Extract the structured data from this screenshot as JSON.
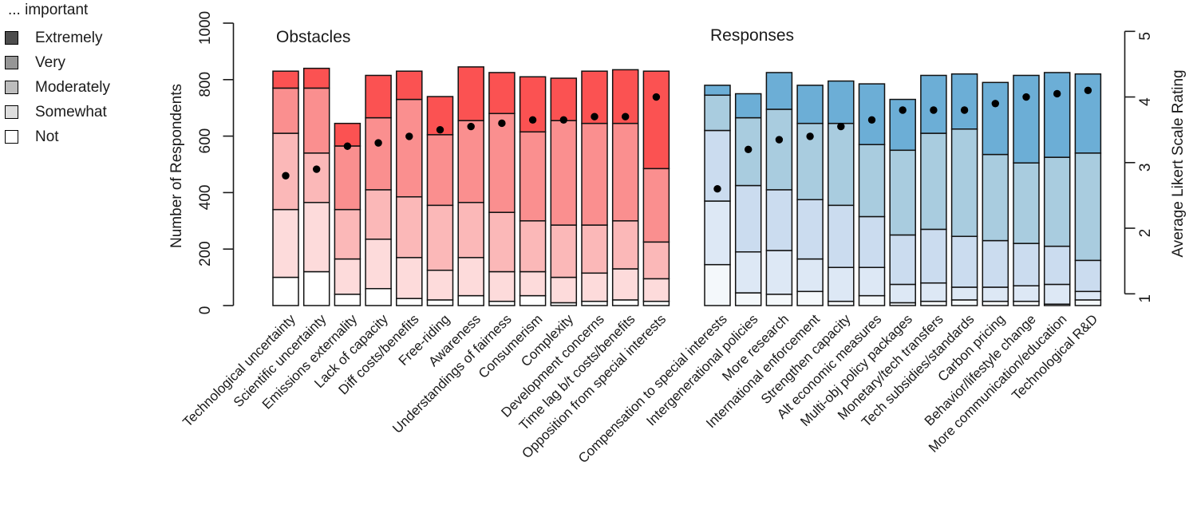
{
  "legend": {
    "title": "... important",
    "items": [
      {
        "label": "Extremely",
        "color": "#4D4D4D"
      },
      {
        "label": "Very",
        "color": "#969696"
      },
      {
        "label": "Moderately",
        "color": "#BDBDBD"
      },
      {
        "label": "Somewhat",
        "color": "#DEDEDE"
      },
      {
        "label": "Not",
        "color": "#FFFFFF"
      }
    ]
  },
  "left_axis": {
    "label": "Number of Respondents",
    "ticks": [
      0,
      200,
      400,
      600,
      800,
      1000
    ],
    "range": [
      0,
      1000
    ]
  },
  "right_axis": {
    "label": "Average Likert Scale Rating",
    "ticks": [
      1,
      2,
      3,
      4,
      5
    ],
    "range": [
      1,
      5
    ]
  },
  "chart_data": {
    "type": "bar",
    "stacked": true,
    "stack_order": [
      "not",
      "somewhat",
      "moderately",
      "very",
      "extremely"
    ],
    "stack_labels": {
      "not": "Not",
      "somewhat": "Somewhat",
      "moderately": "Moderately",
      "very": "Very",
      "extremely": "Extremely"
    },
    "dot_series": "Average Likert Scale Rating",
    "ylabel_left": "Number of Respondents",
    "ylabel_right": "Average Likert Scale Rating",
    "ylim_left": [
      0,
      1000
    ],
    "ylim_right": [
      1,
      5
    ],
    "grid": false,
    "groups": [
      {
        "title": "Obstacles",
        "palette": {
          "extremely": "#FB5252",
          "very": "#FA8F8F",
          "moderately": "#FBB8B8",
          "somewhat": "#FDDBDB",
          "not": "#FFFFFF"
        },
        "bars": [
          {
            "label": "Technological uncertainty",
            "segments": {
              "not": 100,
              "somewhat": 240,
              "moderately": 270,
              "very": 160,
              "extremely": 60
            },
            "likert": 2.8
          },
          {
            "label": "Scientific uncertainty",
            "segments": {
              "not": 120,
              "somewhat": 245,
              "moderately": 175,
              "very": 230,
              "extremely": 70
            },
            "likert": 2.9
          },
          {
            "label": "Emissions externality",
            "segments": {
              "not": 40,
              "somewhat": 125,
              "moderately": 175,
              "very": 225,
              "extremely": 80
            },
            "likert": 3.25
          },
          {
            "label": "Lack of capacity",
            "segments": {
              "not": 60,
              "somewhat": 175,
              "moderately": 175,
              "very": 255,
              "extremely": 150
            },
            "likert": 3.3
          },
          {
            "label": "Diff costs/benefits",
            "segments": {
              "not": 25,
              "somewhat": 145,
              "moderately": 215,
              "very": 345,
              "extremely": 100
            },
            "likert": 3.4
          },
          {
            "label": "Free-riding",
            "segments": {
              "not": 20,
              "somewhat": 105,
              "moderately": 230,
              "very": 250,
              "extremely": 135
            },
            "likert": 3.5
          },
          {
            "label": "Awareness",
            "segments": {
              "not": 35,
              "somewhat": 135,
              "moderately": 195,
              "very": 290,
              "extremely": 190
            },
            "likert": 3.55
          },
          {
            "label": "Understandings of fairness",
            "segments": {
              "not": 15,
              "somewhat": 105,
              "moderately": 210,
              "very": 350,
              "extremely": 145
            },
            "likert": 3.6
          },
          {
            "label": "Consumerism",
            "segments": {
              "not": 35,
              "somewhat": 85,
              "moderately": 180,
              "very": 315,
              "extremely": 195
            },
            "likert": 3.65
          },
          {
            "label": "Complexity",
            "segments": {
              "not": 10,
              "somewhat": 90,
              "moderately": 185,
              "very": 370,
              "extremely": 150
            },
            "likert": 3.65
          },
          {
            "label": "Development concerns",
            "segments": {
              "not": 15,
              "somewhat": 100,
              "moderately": 170,
              "very": 360,
              "extremely": 185
            },
            "likert": 3.7
          },
          {
            "label": "Time lag b/t costs/benefits",
            "segments": {
              "not": 20,
              "somewhat": 110,
              "moderately": 170,
              "very": 345,
              "extremely": 190
            },
            "likert": 3.7
          },
          {
            "label": "Opposition from special interests",
            "segments": {
              "not": 15,
              "somewhat": 80,
              "moderately": 130,
              "very": 260,
              "extremely": 345
            },
            "likert": 4.0
          }
        ]
      },
      {
        "title": "Responses",
        "palette": {
          "extremely": "#6CAED6",
          "very": "#A9CCDF",
          "moderately": "#CBDCEF",
          "somewhat": "#DDE8F5",
          "not": "#F4F8FB"
        },
        "bars": [
          {
            "label": "Compensation to special interests",
            "segments": {
              "not": 145,
              "somewhat": 225,
              "moderately": 250,
              "very": 125,
              "extremely": 35
            },
            "likert": 2.6
          },
          {
            "label": "Intergenerational policies",
            "segments": {
              "not": 45,
              "somewhat": 145,
              "moderately": 235,
              "very": 240,
              "extremely": 85
            },
            "likert": 3.2
          },
          {
            "label": "More research",
            "segments": {
              "not": 40,
              "somewhat": 155,
              "moderately": 215,
              "very": 285,
              "extremely": 130
            },
            "likert": 3.35
          },
          {
            "label": "International enforcement",
            "segments": {
              "not": 50,
              "somewhat": 115,
              "moderately": 210,
              "very": 270,
              "extremely": 135
            },
            "likert": 3.4
          },
          {
            "label": "Strengthen capacity",
            "segments": {
              "not": 15,
              "somewhat": 120,
              "moderately": 220,
              "very": 290,
              "extremely": 150
            },
            "likert": 3.55
          },
          {
            "label": "Alt economic measures",
            "segments": {
              "not": 35,
              "somewhat": 100,
              "moderately": 180,
              "very": 255,
              "extremely": 215
            },
            "likert": 3.65
          },
          {
            "label": "Multi-obj policy packages",
            "segments": {
              "not": 10,
              "somewhat": 65,
              "moderately": 175,
              "very": 300,
              "extremely": 180
            },
            "likert": 3.8
          },
          {
            "label": "Monetary/tech transfers",
            "segments": {
              "not": 15,
              "somewhat": 65,
              "moderately": 190,
              "very": 340,
              "extremely": 205
            },
            "likert": 3.8
          },
          {
            "label": "Tech subsidies/standards",
            "segments": {
              "not": 20,
              "somewhat": 45,
              "moderately": 180,
              "very": 380,
              "extremely": 195
            },
            "likert": 3.8
          },
          {
            "label": "Carbon pricing",
            "segments": {
              "not": 15,
              "somewhat": 50,
              "moderately": 165,
              "very": 305,
              "extremely": 255
            },
            "likert": 3.9
          },
          {
            "label": "Behavior/lifestyle change",
            "segments": {
              "not": 15,
              "somewhat": 55,
              "moderately": 150,
              "very": 285,
              "extremely": 310
            },
            "likert": 4.0
          },
          {
            "label": "More communication/education",
            "segments": {
              "not": 5,
              "somewhat": 70,
              "moderately": 135,
              "very": 315,
              "extremely": 300
            },
            "likert": 4.05
          },
          {
            "label": "Technological R&D",
            "segments": {
              "not": 20,
              "somewhat": 30,
              "moderately": 110,
              "very": 380,
              "extremely": 280
            },
            "likert": 4.1
          }
        ]
      }
    ]
  }
}
